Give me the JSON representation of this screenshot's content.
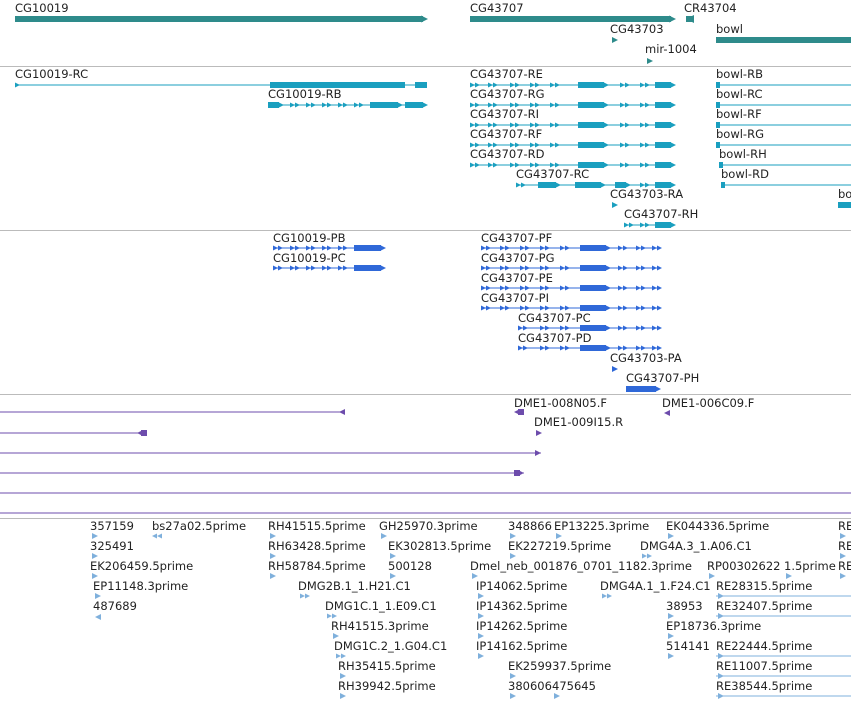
{
  "colors": {
    "gene": "#2e8b8b",
    "transcript": "#1a9fbf",
    "protein": "#2f68d8",
    "clone": "#6d4cac",
    "est": "#7fb0dc",
    "divider": "#bbbbbb"
  },
  "tracks": [
    {
      "id": "genes",
      "features": [
        {
          "label": "CG10019",
          "glyph": "gene"
        },
        {
          "label": "CG43707",
          "glyph": "gene"
        },
        {
          "label": "CR43704",
          "glyph": "gene"
        },
        {
          "label": "CG43703",
          "glyph": "gene"
        },
        {
          "label": "mir-1004",
          "glyph": "gene"
        },
        {
          "label": "bowl",
          "glyph": "gene"
        }
      ]
    },
    {
      "id": "transcripts",
      "features": [
        {
          "label": "CG10019-RC",
          "glyph": "transcript"
        },
        {
          "label": "CG10019-RB",
          "glyph": "transcript"
        },
        {
          "label": "CG43707-RE",
          "glyph": "transcript"
        },
        {
          "label": "CG43707-RG",
          "glyph": "transcript"
        },
        {
          "label": "CG43707-RI",
          "glyph": "transcript"
        },
        {
          "label": "CG43707-RF",
          "glyph": "transcript"
        },
        {
          "label": "CG43707-RD",
          "glyph": "transcript"
        },
        {
          "label": "CG43707-RC",
          "glyph": "transcript"
        },
        {
          "label": "CG43703-RA",
          "glyph": "transcript"
        },
        {
          "label": "CG43707-RH",
          "glyph": "transcript"
        },
        {
          "label": "bowl-RB",
          "glyph": "transcript"
        },
        {
          "label": "bowl-RC",
          "glyph": "transcript"
        },
        {
          "label": "bowl-RF",
          "glyph": "transcript"
        },
        {
          "label": "bowl-RG",
          "glyph": "transcript"
        },
        {
          "label": "bowl-RH",
          "glyph": "transcript"
        },
        {
          "label": "bowl-RD",
          "glyph": "transcript"
        },
        {
          "label": "bo",
          "glyph": "transcript"
        }
      ]
    },
    {
      "id": "proteins",
      "features": [
        {
          "label": "CG10019-PB",
          "glyph": "protein"
        },
        {
          "label": "CG10019-PC",
          "glyph": "protein"
        },
        {
          "label": "CG43707-PF",
          "glyph": "protein"
        },
        {
          "label": "CG43707-PG",
          "glyph": "protein"
        },
        {
          "label": "CG43707-PE",
          "glyph": "protein"
        },
        {
          "label": "CG43707-PI",
          "glyph": "protein"
        },
        {
          "label": "CG43707-PC",
          "glyph": "protein"
        },
        {
          "label": "CG43707-PD",
          "glyph": "protein"
        },
        {
          "label": "CG43703-PA",
          "glyph": "protein"
        },
        {
          "label": "CG43707-PH",
          "glyph": "protein"
        }
      ]
    },
    {
      "id": "clones",
      "features": [
        {
          "label": "",
          "glyph": "clone"
        },
        {
          "label": "DME1-008N05.F",
          "glyph": "clone"
        },
        {
          "label": "DME1-006C09.F",
          "glyph": "clone"
        },
        {
          "label": "DME1-009I15.R",
          "glyph": "clone"
        },
        {
          "label": "",
          "glyph": "clone"
        },
        {
          "label": "",
          "glyph": "clone"
        },
        {
          "label": "",
          "glyph": "clone"
        },
        {
          "label": "",
          "glyph": "clone"
        },
        {
          "label": "",
          "glyph": "clone"
        }
      ]
    },
    {
      "id": "ests",
      "features": [
        {
          "label": "357159",
          "glyph": "est"
        },
        {
          "label": "325491",
          "glyph": "est"
        },
        {
          "label": "EK206459.5prime",
          "glyph": "est"
        },
        {
          "label": "EP11148.3prime",
          "glyph": "est"
        },
        {
          "label": "487689",
          "glyph": "est"
        },
        {
          "label": "bs27a02.5prime",
          "glyph": "est"
        },
        {
          "label": "RH41515.5prime",
          "glyph": "est"
        },
        {
          "label": "RH63428.5prime",
          "glyph": "est"
        },
        {
          "label": "RH58784.5prime",
          "glyph": "est"
        },
        {
          "label": "DMG2B.1_1.H21.C1",
          "glyph": "est"
        },
        {
          "label": "DMG1C.1_1.E09.C1",
          "glyph": "est"
        },
        {
          "label": "RH41515.3prime",
          "glyph": "est"
        },
        {
          "label": "DMG1C.2_1.G04.C1",
          "glyph": "est"
        },
        {
          "label": "RH35415.5prime",
          "glyph": "est"
        },
        {
          "label": "RH39942.5prime",
          "glyph": "est"
        },
        {
          "label": "GH25970.3prime",
          "glyph": "est"
        },
        {
          "label": "EK302813.5prime",
          "glyph": "est"
        },
        {
          "label": "500128",
          "glyph": "est"
        },
        {
          "label": "348866",
          "glyph": "est"
        },
        {
          "label": "EP13225.3prime",
          "glyph": "est"
        },
        {
          "label": "EK227219.5prime",
          "glyph": "est"
        },
        {
          "label": "Dmel_neb_001876_0701_1182.3prime",
          "glyph": "est"
        },
        {
          "label": "IP14062.5prime",
          "glyph": "est"
        },
        {
          "label": "IP14362.5prime",
          "glyph": "est"
        },
        {
          "label": "IP14262.5prime",
          "glyph": "est"
        },
        {
          "label": "IP14162.5prime",
          "glyph": "est"
        },
        {
          "label": "EK259937.5prime",
          "glyph": "est"
        },
        {
          "label": "380606",
          "glyph": "est"
        },
        {
          "label": "475645",
          "glyph": "est"
        },
        {
          "label": "EK044336.5prime",
          "glyph": "est"
        },
        {
          "label": "DMG4A.3_1.A06.C1",
          "glyph": "est"
        },
        {
          "label": "RP00302622",
          "glyph": "est"
        },
        {
          "label": "1.5prime",
          "glyph": "est"
        },
        {
          "label": "DMG4A.1_1.F24.C1",
          "glyph": "est"
        },
        {
          "label": "RE28315.5prime",
          "glyph": "est"
        },
        {
          "label": "38953",
          "glyph": "est"
        },
        {
          "label": "RE32407.5prime",
          "glyph": "est"
        },
        {
          "label": "EP18736.3prime",
          "glyph": "est"
        },
        {
          "label": "514141",
          "glyph": "est"
        },
        {
          "label": "RE22444.5prime",
          "glyph": "est"
        },
        {
          "label": "RE11007.5prime",
          "glyph": "est"
        },
        {
          "label": "RE38544.5prime",
          "glyph": "est"
        },
        {
          "label": "RE",
          "glyph": "est"
        },
        {
          "label": "RE",
          "glyph": "est"
        },
        {
          "label": "RE",
          "glyph": "est"
        }
      ]
    }
  ]
}
